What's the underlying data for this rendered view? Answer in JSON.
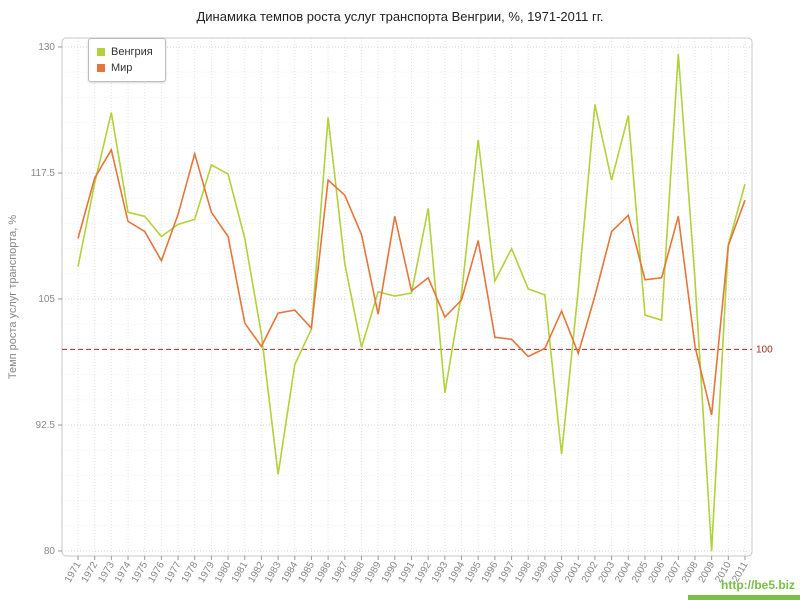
{
  "chart_data": {
    "type": "line",
    "title": "Динамика темпов роста услуг транспорта Венгрии, %, 1971-2011 гг.",
    "ylabel": "Темп роста услуг транспорта, %",
    "ylim": [
      80,
      130
    ],
    "yticks": [
      80,
      92.5,
      105,
      117.5,
      130
    ],
    "grid": true,
    "legend_position": "top-left",
    "years": [
      1971,
      1972,
      1973,
      1974,
      1975,
      1976,
      1977,
      1978,
      1979,
      1980,
      1981,
      1982,
      1983,
      1984,
      1985,
      1986,
      1987,
      1988,
      1989,
      1990,
      1991,
      1992,
      1993,
      1994,
      1995,
      1996,
      1997,
      1998,
      1999,
      2000,
      2001,
      2002,
      2003,
      2004,
      2005,
      2006,
      2007,
      2008,
      2009,
      2010,
      2011
    ],
    "series": [
      {
        "name": "Венгрия",
        "color": "#b0d23a",
        "values": [
          108.2,
          116.5,
          123.5,
          113.6,
          113.2,
          111.2,
          112.4,
          112.9,
          118.3,
          117.4,
          111.0,
          101.5,
          87.6,
          98.5,
          102.0,
          123.0,
          108.5,
          100.2,
          105.7,
          105.3,
          105.6,
          114.0,
          95.7,
          105.5,
          120.8,
          106.8,
          110.0,
          106.0,
          105.4,
          89.6,
          106.0,
          124.3,
          116.8,
          123.2,
          103.4,
          102.9,
          129.3,
          106.9,
          80.0,
          110.4,
          116.4
        ]
      },
      {
        "name": "Мир",
        "color": "#e4763b",
        "values": [
          111.0,
          117.0,
          119.8,
          112.7,
          111.7,
          108.8,
          113.4,
          119.4,
          113.6,
          111.2,
          102.6,
          100.3,
          103.6,
          103.9,
          102.1,
          116.8,
          115.3,
          111.4,
          103.5,
          113.2,
          105.8,
          107.1,
          103.2,
          104.9,
          110.8,
          101.2,
          101.0,
          99.3,
          100.1,
          103.8,
          99.6,
          105.3,
          111.7,
          113.3,
          106.9,
          107.1,
          113.2,
          100.3,
          93.5,
          110.3,
          114.8
        ]
      }
    ],
    "refline": {
      "value": 100,
      "label": "100",
      "color": "#a52a2a"
    }
  },
  "watermark": {
    "text": "http://be5.biz",
    "color": "#76c043"
  }
}
